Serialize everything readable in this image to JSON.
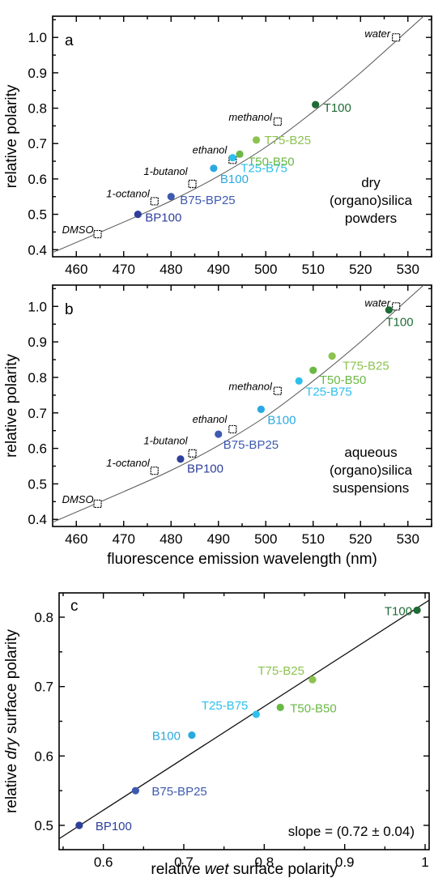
{
  "colors": {
    "BP100": "#2e3f9a",
    "B75-BP25": "#3e5ab0",
    "B100": "#29a9e0",
    "T25-B75": "#2cc0ee",
    "T50-B50": "#6ab945",
    "T75-B25": "#8cc34f",
    "T100": "#1e6b34",
    "solvent_marker": "#ffffff",
    "curve": "#555555"
  },
  "chart_data": [
    {
      "panel": "a",
      "type": "scatter",
      "xlabel": "",
      "ylabel": "relative polarity",
      "xlim": [
        455,
        535
      ],
      "ylim": [
        0.38,
        1.06
      ],
      "xticks": [
        460,
        470,
        480,
        490,
        500,
        510,
        520,
        530
      ],
      "yticks": [
        0.4,
        0.5,
        0.6,
        0.7,
        0.8,
        0.9,
        1.0
      ],
      "annotation": [
        "dry",
        "(organo)silica",
        "powders"
      ],
      "fit_curve": [
        [
          455,
          0.392
        ],
        [
          470,
          0.478
        ],
        [
          480,
          0.538
        ],
        [
          490,
          0.608
        ],
        [
          500,
          0.69
        ],
        [
          510,
          0.79
        ],
        [
          520,
          0.9
        ],
        [
          530,
          1.02
        ],
        [
          535,
          1.08
        ]
      ],
      "solvents": [
        {
          "name": "DMSO",
          "x": 464.5,
          "y": 0.444
        },
        {
          "name": "1-octanol",
          "x": 476.5,
          "y": 0.537
        },
        {
          "name": "1-butanol",
          "x": 484.5,
          "y": 0.586
        },
        {
          "name": "ethanol",
          "x": 493,
          "y": 0.654
        },
        {
          "name": "methanol",
          "x": 502.5,
          "y": 0.762
        },
        {
          "name": "water",
          "x": 527.5,
          "y": 1.0
        }
      ],
      "samples": [
        {
          "name": "BP100",
          "x": 473,
          "y": 0.5
        },
        {
          "name": "B75-BP25",
          "x": 480,
          "y": 0.55
        },
        {
          "name": "B100",
          "x": 489,
          "y": 0.63
        },
        {
          "name": "T25-B75",
          "x": 493,
          "y": 0.66
        },
        {
          "name": "T50-B50",
          "x": 494.5,
          "y": 0.67
        },
        {
          "name": "T75-B25",
          "x": 498,
          "y": 0.71
        },
        {
          "name": "T100",
          "x": 510.5,
          "y": 0.81
        }
      ]
    },
    {
      "panel": "b",
      "type": "scatter",
      "xlabel": "fluorescence emission wavelength (nm)",
      "ylabel": "relative polarity",
      "xlim": [
        455,
        535
      ],
      "ylim": [
        0.38,
        1.06
      ],
      "xticks": [
        460,
        470,
        480,
        490,
        500,
        510,
        520,
        530
      ],
      "yticks": [
        0.4,
        0.5,
        0.6,
        0.7,
        0.8,
        0.9,
        1.0
      ],
      "annotation": [
        "aqueous",
        "(organo)silica",
        "suspensions"
      ],
      "fit_curve": [
        [
          455,
          0.392
        ],
        [
          470,
          0.478
        ],
        [
          480,
          0.538
        ],
        [
          490,
          0.608
        ],
        [
          500,
          0.69
        ],
        [
          510,
          0.79
        ],
        [
          520,
          0.9
        ],
        [
          530,
          1.02
        ],
        [
          535,
          1.08
        ]
      ],
      "solvents": [
        {
          "name": "DMSO",
          "x": 464.5,
          "y": 0.444
        },
        {
          "name": "1-octanol",
          "x": 476.5,
          "y": 0.537
        },
        {
          "name": "1-butanol",
          "x": 484.5,
          "y": 0.586
        },
        {
          "name": "ethanol",
          "x": 493,
          "y": 0.654
        },
        {
          "name": "methanol",
          "x": 502.5,
          "y": 0.762
        },
        {
          "name": "water",
          "x": 527.5,
          "y": 1.0
        }
      ],
      "samples": [
        {
          "name": "BP100",
          "x": 482,
          "y": 0.57
        },
        {
          "name": "B75-BP25",
          "x": 490,
          "y": 0.64
        },
        {
          "name": "B100",
          "x": 499,
          "y": 0.71
        },
        {
          "name": "T25-B75",
          "x": 507,
          "y": 0.79
        },
        {
          "name": "T50-B50",
          "x": 510,
          "y": 0.82
        },
        {
          "name": "T75-B25",
          "x": 514,
          "y": 0.86
        },
        {
          "name": "T100",
          "x": 526,
          "y": 0.99
        }
      ]
    },
    {
      "panel": "c",
      "type": "scatter",
      "xlabel_parts": [
        "relative ",
        "wet",
        " surface polarity"
      ],
      "ylabel_parts": [
        "relative ",
        "dry",
        " surface polarity"
      ],
      "xlim": [
        0.545,
        1.005
      ],
      "ylim": [
        0.465,
        0.835
      ],
      "xticks": [
        0.6,
        0.7,
        0.8,
        0.9,
        1.0
      ],
      "yticks": [
        0.5,
        0.6,
        0.7,
        0.8
      ],
      "fit_line": [
        [
          0.545,
          0.4808
        ],
        [
          1.005,
          0.8245
        ]
      ],
      "slope_label": "slope = (0.72 ± 0.04)",
      "samples": [
        {
          "name": "BP100",
          "x": 0.57,
          "y": 0.5
        },
        {
          "name": "B75-BP25",
          "x": 0.64,
          "y": 0.55
        },
        {
          "name": "B100",
          "x": 0.71,
          "y": 0.63
        },
        {
          "name": "T25-B75",
          "x": 0.79,
          "y": 0.66
        },
        {
          "name": "T50-B50",
          "x": 0.82,
          "y": 0.67
        },
        {
          "name": "T75-B25",
          "x": 0.86,
          "y": 0.71
        },
        {
          "name": "T100",
          "x": 0.99,
          "y": 0.81
        }
      ]
    }
  ]
}
